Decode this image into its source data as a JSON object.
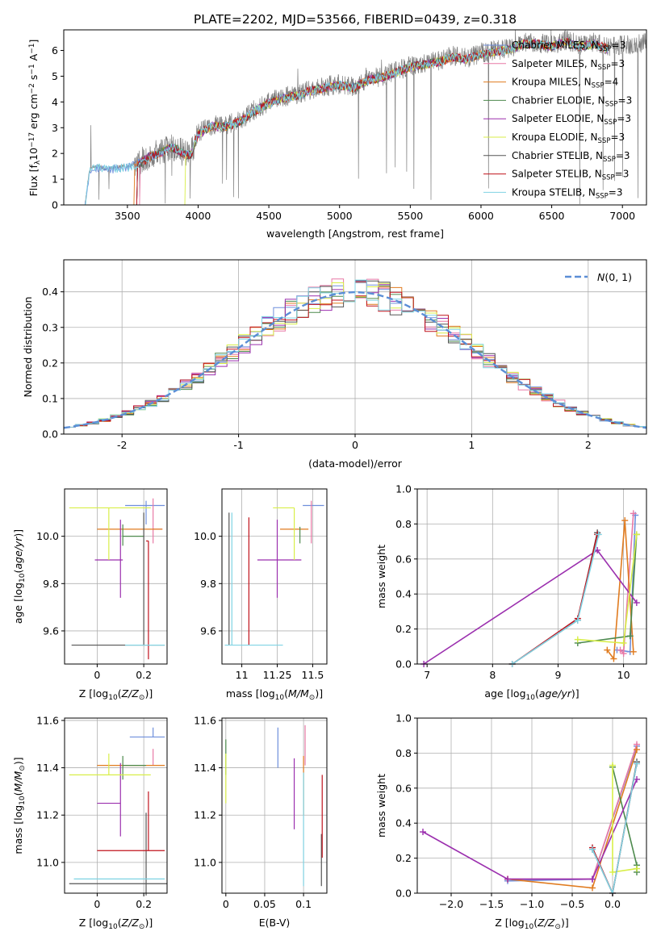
{
  "figure": {
    "title": "PLATE=2202, MJD=53566, FIBERID=0439, z=0.318"
  },
  "series_styles": [
    {
      "name": "Chabrier MILES, N<sub>SSP</sub>=3",
      "base": "Chabrier MILES, N",
      "sub": "SSP",
      "tail": "=3",
      "color": "#6f8fdc"
    },
    {
      "name": "Salpeter MILES, N<sub>SSP</sub>=3",
      "base": "Salpeter MILES, N",
      "sub": "SSP",
      "tail": "=3",
      "color": "#e879a6"
    },
    {
      "name": "Kroupa MILES, N<sub>SSP</sub>=4",
      "base": "Kroupa MILES, N",
      "sub": "SSP",
      "tail": "=4",
      "color": "#e07b1f"
    },
    {
      "name": "Chabrier ELODIE, N<sub>SSP</sub>=3",
      "base": "Chabrier ELODIE, N",
      "sub": "SSP",
      "tail": "=3",
      "color": "#4d8a4d"
    },
    {
      "name": "Salpeter ELODIE, N<sub>SSP</sub>=3",
      "base": "Salpeter ELODIE, N",
      "sub": "SSP",
      "tail": "=3",
      "color": "#9b2fae"
    },
    {
      "name": "Kroupa ELODIE, N<sub>SSP</sub>=3",
      "base": "Kroupa ELODIE, N",
      "sub": "SSP",
      "tail": "=3",
      "color": "#d8ee48"
    },
    {
      "name": "Chabrier STELIB, N<sub>SSP</sub>=3",
      "base": "Chabrier STELIB, N",
      "sub": "SSP",
      "tail": "=3",
      "color": "#555555"
    },
    {
      "name": "Salpeter STELIB, N<sub>SSP</sub>=3",
      "base": "Salpeter STELIB, N",
      "sub": "SSP",
      "tail": "=3",
      "color": "#c0121c"
    },
    {
      "name": "Kroupa STELIB, N<sub>SSP</sub>=3",
      "base": "Kroupa STELIB, N",
      "sub": "SSP",
      "tail": "=3",
      "color": "#7fd3e3"
    }
  ],
  "chart_data": [
    {
      "id": "spectrum",
      "type": "line",
      "title": "PLATE=2202, MJD=53566, FIBERID=0439, z=0.318",
      "xlabel": "wavelength [Angstrom, rest frame]",
      "ylabel": "Flux [f_λ10^-17 erg cm^-2 s^-1 A^-1]",
      "xlim": [
        3050,
        7170
      ],
      "ylim": [
        0,
        6.8
      ],
      "xticks": [
        3500,
        4000,
        4500,
        5000,
        5500,
        6000,
        6500,
        7000
      ],
      "yticks": [
        0,
        1,
        2,
        3,
        4,
        5,
        6
      ],
      "legend": "top-right",
      "data_color": "#808080",
      "continuum": {
        "x": [
          3200,
          3230,
          3260,
          3300,
          3350,
          3400,
          3450,
          3500,
          3550,
          3600,
          3650,
          3700,
          3750,
          3800,
          3850,
          3900,
          3950,
          4000,
          4100,
          4200,
          4300,
          4400,
          4500,
          4600,
          4700,
          4800,
          4900,
          5000,
          5100,
          5200,
          5300,
          5400,
          5500,
          5600,
          5700,
          5800,
          5900,
          6000,
          6100,
          6200,
          6300,
          6400,
          6500,
          6600,
          6700,
          6800,
          6900,
          7000,
          7170
        ],
        "y": [
          0,
          1.3,
          1.5,
          1.5,
          1.4,
          1.45,
          1.5,
          1.5,
          1.6,
          1.7,
          1.9,
          2.0,
          2.1,
          2.3,
          2.2,
          2.0,
          2.0,
          2.8,
          3.1,
          3.1,
          3.3,
          3.7,
          4.0,
          4.2,
          4.3,
          4.5,
          4.6,
          4.7,
          4.6,
          4.9,
          5.0,
          5.2,
          5.4,
          5.5,
          5.6,
          5.8,
          5.7,
          5.9,
          6.0,
          6.1,
          6.3,
          6.3,
          6.2,
          6.4,
          6.2,
          6.3,
          6.1,
          6.2,
          6.3
        ]
      }
    },
    {
      "id": "residuals",
      "type": "histogram",
      "xlabel": "(data-model)/error",
      "ylabel": "Normed distribution",
      "xlim": [
        -2.5,
        2.5
      ],
      "ylim": [
        0,
        0.49
      ],
      "xticks": [
        -2,
        -1,
        0,
        1,
        2
      ],
      "yticks": [
        0.0,
        0.1,
        0.2,
        0.3,
        0.4
      ],
      "grid": true,
      "legend": "top-right",
      "reference_label": "N(0,1)",
      "reference_color": "#5b8ed6",
      "bin_width": 0.1
    },
    {
      "id": "z-age",
      "type": "errorbar",
      "xlabel": "Z [log10(Z/Z☉)]",
      "ylabel": "age  [log10(age/yr)]",
      "xlim": [
        -0.14,
        0.3
      ],
      "ylim": [
        9.46,
        10.2
      ],
      "xticks": [
        0.0,
        0.2
      ],
      "yticks": [
        9.6,
        9.8,
        10.0
      ],
      "grid": true,
      "points": [
        {
          "x": 0.21,
          "xerr": [
            0.09,
            0.08
          ],
          "y": 10.13,
          "yerr": [
            0.08,
            0.02
          ],
          "c": 0
        },
        {
          "x": 0.24,
          "xerr": [
            0.0,
            0.04
          ],
          "y": 10.03,
          "yerr": [
            0.06,
            0.13
          ],
          "c": 1
        },
        {
          "x": 0.21,
          "xerr": [
            0.21,
            0.07
          ],
          "y": 10.03,
          "yerr": [
            0.0,
            0.0
          ],
          "c": 2
        },
        {
          "x": 0.11,
          "xerr": [
            0.0,
            0.09
          ],
          "y": 10.0,
          "yerr": [
            0.04,
            0.05
          ],
          "c": 3
        },
        {
          "x": 0.1,
          "xerr": [
            0.11,
            0.01
          ],
          "y": 9.9,
          "yerr": [
            0.16,
            0.17
          ],
          "c": 4
        },
        {
          "x": 0.05,
          "xerr": [
            0.17,
            0.18
          ],
          "y": 10.12,
          "yerr": [
            0.22,
            0.0
          ],
          "c": 5
        },
        {
          "x": 0.2,
          "xerr": [
            0.31,
            0.09
          ],
          "y": 9.54,
          "yerr": [
            0.0,
            0.56
          ],
          "c": 6
        },
        {
          "x": 0.22,
          "xerr": [
            0.01,
            0.0
          ],
          "y": 9.98,
          "yerr": [
            0.5,
            0.0
          ],
          "c": 7
        },
        {
          "x": 0.22,
          "xerr": [
            0.1,
            0.07
          ],
          "y": 9.54,
          "yerr": [
            0.0,
            0.0
          ],
          "c": 8
        }
      ]
    },
    {
      "id": "mass-age",
      "type": "errorbar",
      "xlabel": "mass [log10(M/M☉)]",
      "ylabel": "",
      "xlim": [
        10.86,
        11.6
      ],
      "ylim": [
        9.46,
        10.2
      ],
      "xticks": [
        11.0,
        11.25,
        11.5
      ],
      "yticks": [
        9.6,
        9.8,
        10.0
      ],
      "grid": true,
      "points": [
        {
          "x": 11.53,
          "xerr": [
            0.1,
            0.05
          ],
          "y": 10.13,
          "yerr": [
            0.0,
            0.0
          ],
          "c": 0
        },
        {
          "x": 11.49,
          "xerr": [
            0.0,
            0.0
          ],
          "y": 10.03,
          "yerr": [
            0.06,
            0.12
          ],
          "c": 1
        },
        {
          "x": 11.41,
          "xerr": [
            0.14,
            0.06
          ],
          "y": 10.03,
          "yerr": [
            0.0,
            0.0
          ],
          "c": 2
        },
        {
          "x": 11.41,
          "xerr": [
            0.0,
            0.0
          ],
          "y": 10.0,
          "yerr": [
            0.03,
            0.04
          ],
          "c": 3
        },
        {
          "x": 11.25,
          "xerr": [
            0.14,
            0.17
          ],
          "y": 9.9,
          "yerr": [
            0.16,
            0.17
          ],
          "c": 4
        },
        {
          "x": 11.37,
          "xerr": [
            0.15,
            0.0
          ],
          "y": 10.12,
          "yerr": [
            0.22,
            0.0
          ],
          "c": 5
        },
        {
          "x": 10.91,
          "xerr": [
            0.0,
            0.0
          ],
          "y": 9.54,
          "yerr": [
            0.0,
            0.56
          ],
          "c": 6
        },
        {
          "x": 11.05,
          "xerr": [
            0.0,
            0.0
          ],
          "y": 9.54,
          "yerr": [
            0.0,
            0.54
          ],
          "c": 7
        },
        {
          "x": 10.93,
          "xerr": [
            0.05,
            0.36
          ],
          "y": 9.54,
          "yerr": [
            0.0,
            0.56
          ],
          "c": 8
        }
      ]
    },
    {
      "id": "age-weight",
      "type": "line",
      "xlabel": "age  [log10(age/yr)]",
      "ylabel": "mass weight",
      "xlim": [
        6.85,
        10.35
      ],
      "ylim": [
        0,
        1.0
      ],
      "xticks": [
        7,
        8,
        9,
        10
      ],
      "yticks": [
        0.0,
        0.2,
        0.4,
        0.6,
        0.8,
        1.0
      ],
      "grid": true,
      "series": [
        {
          "c": 0,
          "x": [
            9.9,
            10.1,
            10.18
          ],
          "y": [
            0.08,
            0.07,
            0.85
          ]
        },
        {
          "c": 1,
          "x": [
            9.95,
            10.0,
            10.15
          ],
          "y": [
            0.08,
            0.06,
            0.86
          ]
        },
        {
          "c": 2,
          "x": [
            9.75,
            9.85,
            10.02,
            10.15
          ],
          "y": [
            0.08,
            0.03,
            0.82,
            0.07
          ]
        },
        {
          "c": 3,
          "x": [
            9.3,
            10.1,
            10.2
          ],
          "y": [
            0.12,
            0.16,
            0.74
          ]
        },
        {
          "c": 4,
          "x": [
            6.95,
            9.6,
            10.2
          ],
          "y": [
            0.0,
            0.65,
            0.35
          ]
        },
        {
          "c": 5,
          "x": [
            9.3,
            10.0,
            10.2
          ],
          "y": [
            0.14,
            0.12,
            0.74
          ]
        },
        {
          "c": 6,
          "x": [
            8.3,
            9.3,
            9.6
          ],
          "y": [
            0.0,
            0.25,
            0.75
          ]
        },
        {
          "c": 7,
          "x": [
            8.3,
            9.3,
            9.6
          ],
          "y": [
            0.0,
            0.26,
            0.74
          ]
        },
        {
          "c": 8,
          "x": [
            8.3,
            9.3,
            9.62
          ],
          "y": [
            0.0,
            0.25,
            0.74
          ]
        }
      ]
    },
    {
      "id": "z-mass",
      "type": "errorbar",
      "xlabel": "Z [log10(Z/Z☉)]",
      "ylabel": "mass [log10(M/M☉)]",
      "xlim": [
        -0.14,
        0.3
      ],
      "ylim": [
        10.87,
        11.61
      ],
      "xticks": [
        0.0,
        0.2
      ],
      "yticks": [
        11.0,
        11.2,
        11.4,
        11.6
      ],
      "grid": true,
      "points": [
        {
          "x": 0.24,
          "xerr": [
            0.1,
            0.05
          ],
          "y": 11.53,
          "yerr": [
            0.0,
            0.04
          ],
          "c": 0
        },
        {
          "x": 0.24,
          "xerr": [
            0.0,
            0.0
          ],
          "y": 11.48,
          "yerr": [
            0.07,
            0.0
          ],
          "c": 1
        },
        {
          "x": 0.21,
          "xerr": [
            0.21,
            0.08
          ],
          "y": 11.41,
          "yerr": [
            0.0,
            0.0
          ],
          "c": 2
        },
        {
          "x": 0.11,
          "xerr": [
            0.0,
            0.1
          ],
          "y": 11.41,
          "yerr": [
            0.06,
            0.04
          ],
          "c": 3
        },
        {
          "x": 0.1,
          "xerr": [
            0.1,
            0.0
          ],
          "y": 11.25,
          "yerr": [
            0.14,
            0.17
          ],
          "c": 4
        },
        {
          "x": 0.05,
          "xerr": [
            0.17,
            0.18
          ],
          "y": 11.37,
          "yerr": [
            0.0,
            0.09
          ],
          "c": 5
        },
        {
          "x": 0.21,
          "xerr": [
            0.33,
            0.09
          ],
          "y": 10.91,
          "yerr": [
            0.05,
            0.3
          ],
          "c": 6
        },
        {
          "x": 0.22,
          "xerr": [
            0.22,
            0.07
          ],
          "y": 11.05,
          "yerr": [
            0.0,
            0.25
          ],
          "c": 7
        },
        {
          "x": 0.22,
          "xerr": [
            0.32,
            0.07
          ],
          "y": 10.93,
          "yerr": [
            0.0,
            0.0
          ],
          "c": 8
        }
      ]
    },
    {
      "id": "ebv-mass",
      "type": "errorbar",
      "xlabel": "E(B-V)",
      "ylabel": "",
      "xlim": [
        -0.005,
        0.13
      ],
      "ylim": [
        10.87,
        11.61
      ],
      "xticks": [
        0.0,
        0.05,
        0.1
      ],
      "yticks": [
        11.0,
        11.2,
        11.4,
        11.6
      ],
      "grid": true,
      "points": [
        {
          "x": 0.067,
          "xerr": [
            0.0,
            0.0
          ],
          "y": 11.5,
          "yerr": [
            0.1,
            0.07
          ],
          "c": 0
        },
        {
          "x": 0.102,
          "xerr": [
            0.0,
            0.0
          ],
          "y": 11.49,
          "yerr": [
            0.08,
            0.09
          ],
          "c": 1
        },
        {
          "x": 0.1,
          "xerr": [
            0.0,
            0.0
          ],
          "y": 11.28,
          "yerr": [
            0.08,
            0.17
          ],
          "c": 2
        },
        {
          "x": 0.0,
          "xerr": [
            0.0,
            0.0
          ],
          "y": 11.44,
          "yerr": [
            0.07,
            0.08
          ],
          "c": 3
        },
        {
          "x": 0.088,
          "xerr": [
            0.0,
            0.0
          ],
          "y": 11.3,
          "yerr": [
            0.16,
            0.14
          ],
          "c": 4
        },
        {
          "x": 0.0,
          "xerr": [
            0.0,
            0.0
          ],
          "y": 11.37,
          "yerr": [
            0.12,
            0.09
          ],
          "c": 5
        },
        {
          "x": 0.123,
          "xerr": [
            0.0,
            0.0
          ],
          "y": 11.0,
          "yerr": [
            0.1,
            0.12
          ],
          "c": 6
        },
        {
          "x": 0.124,
          "xerr": [
            0.0,
            0.0
          ],
          "y": 11.2,
          "yerr": [
            0.18,
            0.17
          ],
          "c": 7
        },
        {
          "x": 0.1,
          "xerr": [
            0.0,
            0.0
          ],
          "y": 11.1,
          "yerr": [
            0.2,
            0.28
          ],
          "c": 8
        }
      ]
    },
    {
      "id": "z-weight",
      "type": "line",
      "xlabel": "Z [log10(Z/Z☉)]",
      "ylabel": "mass weight",
      "xlim": [
        -2.42,
        0.42
      ],
      "ylim": [
        0,
        1.0
      ],
      "xticks": [
        -2.0,
        -1.5,
        -1.0,
        -0.5,
        0.0
      ],
      "yticks": [
        0.0,
        0.2,
        0.4,
        0.6,
        0.8,
        1.0
      ],
      "grid": true,
      "series": [
        {
          "c": 0,
          "x": [
            -1.3,
            -0.25,
            0.3
          ],
          "y": [
            0.07,
            0.08,
            0.84
          ]
        },
        {
          "c": 1,
          "x": [
            -1.3,
            -0.25,
            0.3
          ],
          "y": [
            0.08,
            0.08,
            0.85
          ]
        },
        {
          "c": 2,
          "x": [
            -1.3,
            -0.25,
            0.3
          ],
          "y": [
            0.08,
            0.03,
            0.82
          ]
        },
        {
          "c": 3,
          "x": [
            0.0,
            0.3,
            0.3
          ],
          "y": [
            0.72,
            0.16,
            0.12
          ]
        },
        {
          "c": 4,
          "x": [
            -2.35,
            -1.3,
            -0.25,
            0.3
          ],
          "y": [
            0.35,
            0.08,
            0.08,
            0.65
          ]
        },
        {
          "c": 5,
          "x": [
            0.0,
            0.0,
            0.3
          ],
          "y": [
            0.73,
            0.12,
            0.14
          ]
        },
        {
          "c": 6,
          "x": [
            -0.25,
            0.0,
            0.3
          ],
          "y": [
            0.25,
            0.0,
            0.75
          ]
        },
        {
          "c": 7,
          "x": [
            -0.25,
            0.0,
            0.3
          ],
          "y": [
            0.26,
            0.0,
            0.74
          ]
        },
        {
          "c": 8,
          "x": [
            -0.25,
            0.0,
            0.3
          ],
          "y": [
            0.25,
            0.0,
            0.74
          ]
        }
      ]
    }
  ]
}
